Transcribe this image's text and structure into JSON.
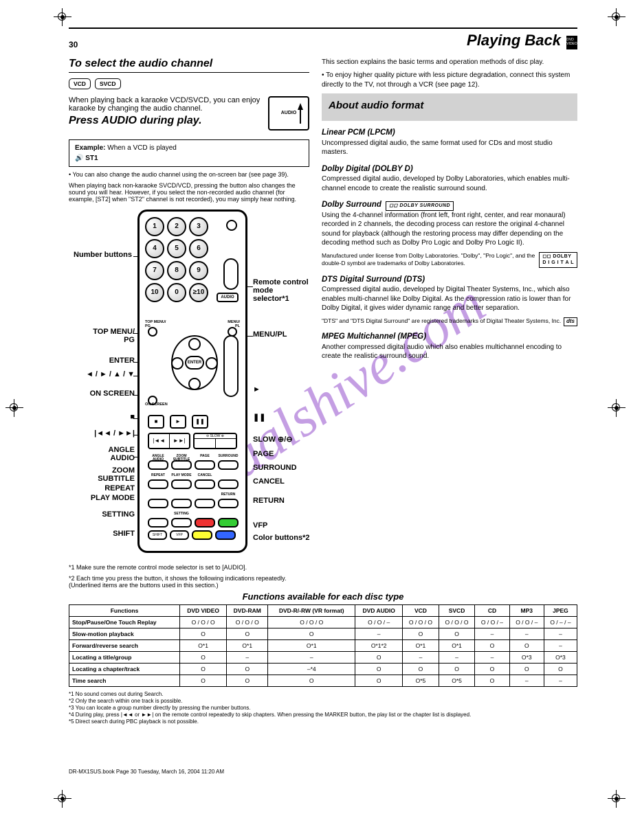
{
  "watermark": "manualshive.com",
  "page_number": "30",
  "section_title": "Playing Back",
  "dvd_badge": "DVD VIDEO",
  "left": {
    "subhead": "To select the audio channel",
    "disc_badges": [
      "VCD",
      "SVCD"
    ],
    "intro1": "When playing back a karaoke VCD/SVCD, you can enjoy karaoke by changing the audio channel.",
    "intro2_it": "Press AUDIO during play.",
    "audio_box_label": "AUDIO",
    "example_title": "Example:",
    "example_text": "When a VCD is played",
    "example_bold": "ST1",
    "note_osc": "• You can also change the audio channel using the on‑screen bar (see page 39).",
    "note_karaoke": "When playing back non-karaoke SVCD/VCD, pressing the button also changes the sound you will hear. However, if you select the non-recorded audio channel (for example, [ST2] when \"ST2\" channel is not recorded), you may simply hear nothing.",
    "starred_line1": "*1 Make sure the remote control mode selector is set to [AUDIO].",
    "starred_line2": "*2 Each time you press the button, it shows the following indications repeatedly. (Underlined items are the buttons used in this section.)"
  },
  "remote_labels": {
    "left": {
      "numbers": "Number buttons",
      "top_menu_pg": "TOP MENU/\nPG",
      "enter": "ENTER",
      "cursors": "◄ / ► / ▲ / ▼",
      "on_screen": "ON SCREEN",
      "stop": "■",
      "skip": "|◄◄ / ►►|",
      "angle": "ANGLE",
      "audio": "AUDIO",
      "zoom": "ZOOM",
      "subtitle": "SUBTITLE",
      "repeat": "REPEAT",
      "play_mode": "PLAY MODE",
      "setting": "SETTING",
      "shift": "SHIFT"
    },
    "right": {
      "selector": "Remote control\nmode selector*1",
      "menu_pl": "MENU/PL",
      "play": "►",
      "pause": "❚❚",
      "slow": "SLOW ⊕/⊖",
      "page": "PAGE",
      "surround": "SURROUND",
      "cancel": "CANCEL",
      "return": "RETURN",
      "vfp": "VFP",
      "color_note": "Color buttons*2"
    }
  },
  "right_col": {
    "heat_lines": [
      "This section explains the basic terms and operation methods of disc play.",
      "• To enjoy higher quality picture with less picture degradation, connect this system directly to the TV, not through a VCR (see page 12)."
    ],
    "grey_title": "About audio format",
    "lpcm": {
      "h": "Linear PCM (LPCM)",
      "t": "Uncompressed digital audio, the same format used for CDs and most studio masters."
    },
    "dolby_text": "Dolby Digital (DOLBY D)",
    "dolby_body": "Compressed digital audio, developed by Dolby Laboratories, which enables multi-channel encode to create the realistic surround sound.",
    "dolby_surround": {
      "h": "Dolby Surround",
      "t": "Using the 4-channel information (front left, front right, center, and rear monaural) recorded in 2 channels, the decoding process can restore the original 4-channel sound for playback (although the restoring process may differ depending on the decoding method such as Dolby Pro Logic and Dolby Pro Logic II)."
    },
    "dolby_note": "Manufactured under license from Dolby Laboratories. \"Dolby\", \"Pro Logic\", and the double-D symbol are trademarks of Dolby Laboratories.",
    "dts": {
      "h": "DTS Digital Surround (DTS)",
      "t": "Compressed digital audio, developed by Digital Theater Systems, Inc., which also enables multi-channel like Dolby Digital. As the compression ratio is lower than for Dolby Digital, it gives wider dynamic range and better separation."
    },
    "dts_note": "\"DTS\" and \"DTS Digital Surround\" are registered trademarks of Digital Theater Systems, Inc.",
    "mpeg": {
      "h": "MPEG Multichannel (MPEG)",
      "t": "Another compressed digital audio which also enables multichannel encoding to create the realistic surround sound."
    }
  },
  "table": {
    "title": "Functions available for each disc type",
    "headers": [
      "Functions",
      "DVD VIDEO",
      "DVD-RAM",
      "DVD-R/-RW (VR format)",
      "DVD AUDIO",
      "VCD",
      "SVCD",
      "CD",
      "MP3",
      "JPEG"
    ],
    "rows": [
      [
        "Stop/Pause/One Touch Replay",
        "O / O / O",
        "O / O / O",
        "O / O / O",
        "O / O / –",
        "O / O / O",
        "O / O / O",
        "O / O / –",
        "O / O / –",
        "O / – / –"
      ],
      [
        "Slow-motion playback",
        "O",
        "O",
        "O",
        "–",
        "O",
        "O",
        "–",
        "–",
        "–"
      ],
      [
        "Forward/reverse search",
        "O*1",
        "O*1",
        "O*1",
        "O*1*2",
        "O*1",
        "O*1",
        "O",
        "O",
        "–"
      ],
      [
        "Locating a title/group",
        "O",
        "–",
        "–",
        "O",
        "–",
        "–",
        "–",
        "O*3",
        "O*3"
      ],
      [
        "Locating a chapter/track",
        "O",
        "O",
        "–*4",
        "O",
        "O",
        "O",
        "O",
        "O",
        "O"
      ],
      [
        "Time search",
        "O",
        "O",
        "O",
        "O",
        "O*5",
        "O*5",
        "O",
        "–",
        "–"
      ]
    ],
    "notes": [
      "*1 No sound comes out during Search.",
      "*2 Only the search within one track is possible.",
      "*3 You can locate a group number directly by pressing the number buttons.",
      "*4 During play, press |◄◄ or ►►| on the remote control repeatedly to skip chapters. When pressing the MARKER button, the play list or the chapter list is displayed.",
      "*5 Direct search during PBC playback is not possible."
    ]
  },
  "footer": "DR-MX1SUS.book  Page 30  Tuesday, March 16, 2004  11:20 AM"
}
